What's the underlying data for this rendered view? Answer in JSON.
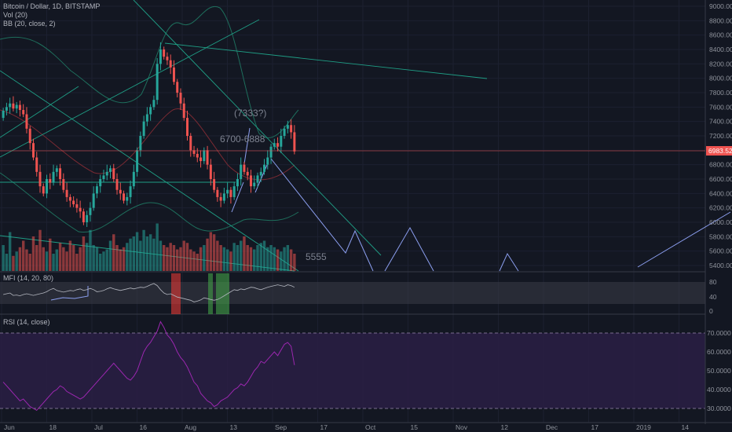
{
  "header": {
    "title": "Bitcoin / Dollar, 1D, BITSTAMP",
    "vol": "Vol (20)",
    "bb": "BB (20, close, 2)"
  },
  "current_price": "6983.52",
  "annotations": {
    "target": "(7333?)",
    "range": "6700-6888",
    "low": "5555"
  },
  "panels": {
    "mfi": {
      "title": "MFI (14, 20, 80)",
      "ticks": [
        "80",
        "40",
        "0"
      ]
    },
    "rsi": {
      "title": "RSI (14, close)",
      "ticks": [
        "70.0000",
        "60.0000",
        "50.0000",
        "40.0000",
        "30.0000"
      ]
    }
  },
  "price_axis": [
    "9000.00",
    "8800.00",
    "8600.00",
    "8400.00",
    "8200.00",
    "8000.00",
    "7800.00",
    "7600.00",
    "7400.00",
    "7200.00",
    "7000.00",
    "6800.00",
    "6600.00",
    "6400.00",
    "6200.00",
    "6000.00",
    "5800.00",
    "5600.00",
    "5400.00"
  ],
  "time_axis": [
    "Jun",
    "18",
    "Jul",
    "16",
    "Aug",
    "13",
    "Sep",
    "17",
    "Oct",
    "15",
    "Nov",
    "12",
    "Dec",
    "17",
    "2019",
    "14"
  ],
  "colors": {
    "bg": "#131722",
    "up": "#26a69a",
    "down": "#ef5350",
    "rsi": "#9c27b0",
    "mfi": "#b2b5be",
    "bb": "#1e6e5c",
    "arrow": "#8c9ff0"
  },
  "chart_data": {
    "type": "candlestick",
    "title": "Bitcoin / Dollar, 1D, BITSTAMP",
    "ylim": [
      5400,
      9000
    ],
    "close": [
      7550,
      7600,
      7650,
      7580,
      7630,
      7560,
      7500,
      7300,
      7100,
      6900,
      6700,
      6500,
      6400,
      6600,
      6550,
      6700,
      6750,
      6600,
      6450,
      6350,
      6300,
      6250,
      6200,
      6150,
      6000,
      6100,
      6200,
      6400,
      6500,
      6600,
      6650,
      6700,
      6750,
      6600,
      6450,
      6400,
      6300,
      6350,
      6500,
      6700,
      7000,
      7200,
      7400,
      7500,
      7600,
      7700,
      8200,
      8400,
      8300,
      8250,
      8150,
      7950,
      7800,
      7650,
      7450,
      7200,
      7000,
      6950,
      6900,
      6850,
      7000,
      6800,
      6600,
      6450,
      6350,
      6300,
      6400,
      6450,
      6350,
      6500,
      6600,
      6800,
      6700,
      6650,
      6500,
      6550,
      6650,
      6700,
      6800,
      6900,
      7050,
      7100,
      7050,
      7200,
      7300,
      7350,
      7250,
      6983.52
    ],
    "mfi": [
      48,
      50,
      52,
      46,
      47,
      45,
      48,
      50,
      48,
      46,
      48,
      50,
      52,
      55,
      60,
      63,
      58,
      56,
      54,
      56,
      58,
      57,
      60,
      62,
      58,
      60,
      63,
      60,
      55,
      56,
      58,
      62,
      65,
      62,
      60,
      58,
      60,
      62,
      64,
      62,
      64,
      66,
      65,
      68,
      72,
      75,
      70,
      60,
      52,
      48,
      50,
      46,
      42,
      40,
      38,
      36,
      34,
      30,
      32,
      35,
      40,
      38,
      36,
      34,
      36,
      40,
      45,
      50,
      55,
      60,
      58,
      62,
      60,
      63,
      66,
      65,
      62,
      60,
      63,
      66,
      68,
      70,
      72,
      70,
      68,
      72,
      70,
      66
    ],
    "rsi": [
      44,
      42,
      40,
      38,
      36,
      34,
      35,
      33,
      31,
      30,
      29,
      31,
      33,
      35,
      37,
      39,
      40,
      42,
      41,
      39,
      38,
      37,
      36,
      35,
      36,
      38,
      40,
      42,
      44,
      46,
      48,
      50,
      52,
      54,
      52,
      50,
      48,
      46,
      45,
      47,
      50,
      55,
      60,
      63,
      65,
      68,
      71,
      76,
      73,
      69,
      67,
      64,
      60,
      57,
      55,
      52,
      48,
      44,
      42,
      38,
      36,
      34,
      33,
      31,
      32,
      34,
      35,
      36,
      38,
      40,
      41,
      43,
      42,
      44,
      47,
      50,
      52,
      55,
      54,
      56,
      58,
      60,
      58,
      61,
      64,
      65,
      63,
      53
    ],
    "volume": [
      60,
      40,
      90,
      35,
      45,
      55,
      70,
      50,
      40,
      80,
      60,
      95,
      55,
      45,
      75,
      40,
      50,
      65,
      55,
      45,
      70,
      60,
      40,
      55,
      80,
      65,
      95,
      60,
      55,
      40,
      45,
      50,
      70,
      85,
      60,
      50,
      55,
      65,
      75,
      80,
      90,
      70,
      95,
      80,
      85,
      75,
      110,
      70,
      60,
      55,
      65,
      60,
      50,
      55,
      70,
      65,
      50,
      45,
      40,
      55,
      60,
      75,
      90,
      85,
      70,
      60,
      55,
      50,
      45,
      65,
      60,
      70,
      80,
      60,
      55,
      50,
      60,
      65,
      70,
      55,
      60,
      55,
      50,
      45,
      55,
      60,
      50,
      40
    ]
  }
}
